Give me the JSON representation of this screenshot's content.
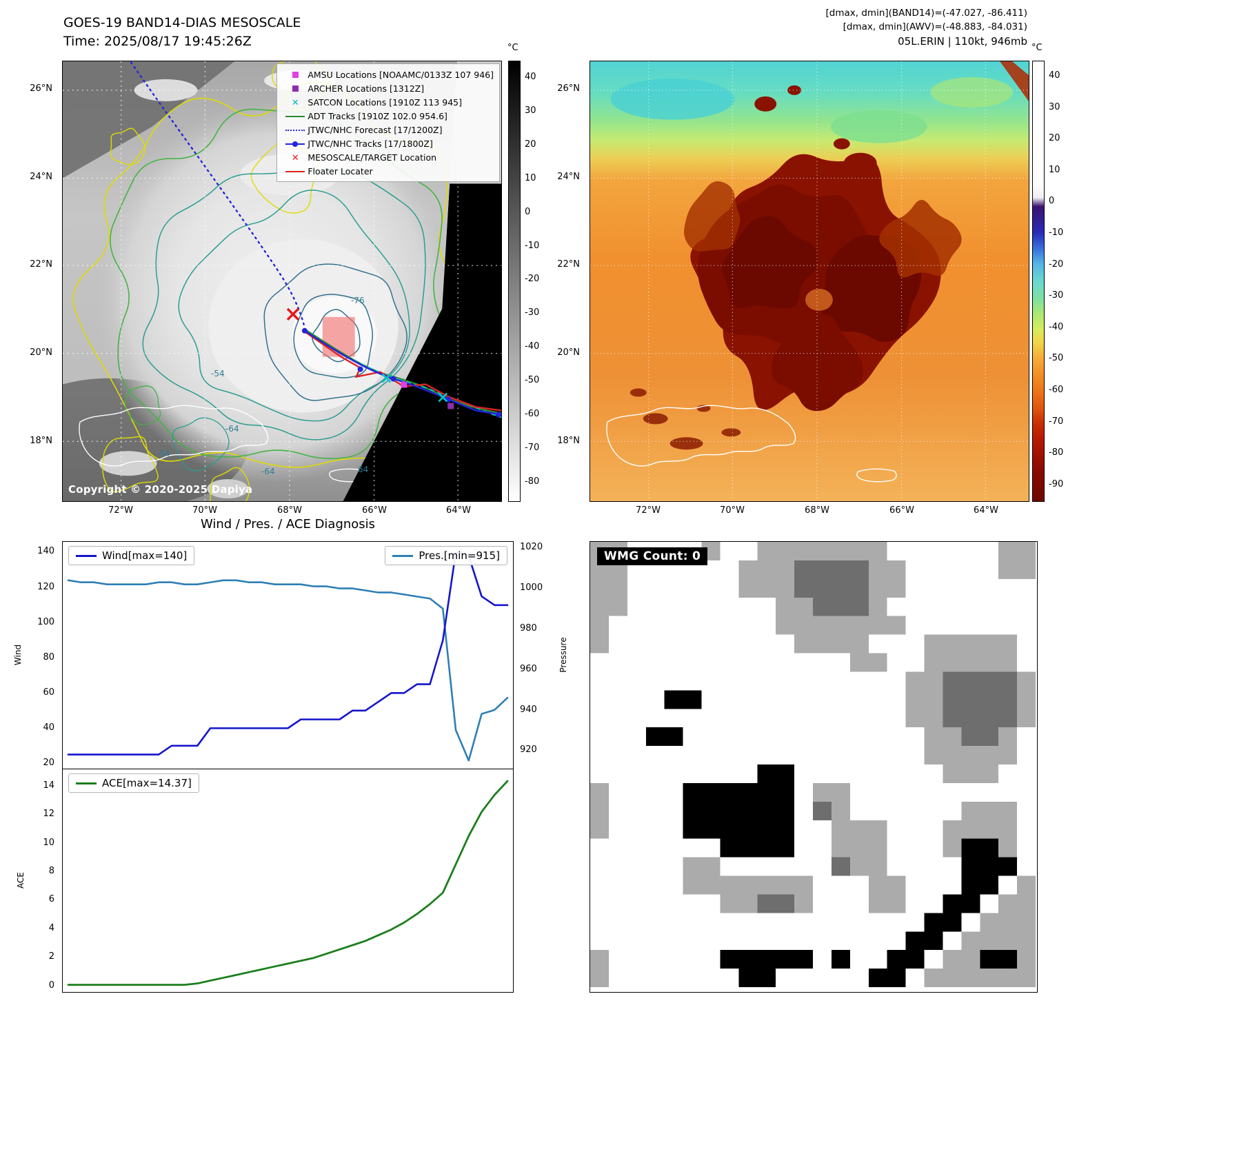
{
  "colors": {
    "wind_line": "#1515cc",
    "pressure_line": "#2d7fb5",
    "ace_line": "#1b7e1b",
    "target_box": "#f26b6b",
    "deep_red_cloud": "#7a0d00",
    "orange_field": "#f0922f",
    "legend_magenta": "#e040e0",
    "legend_purple": "#8b2fb0",
    "legend_cyan": "#00b8b8",
    "legend_green": "#2a8a2a",
    "legend_blue": "#2323dd",
    "legend_red": "#e81515"
  },
  "panel_tl": {
    "title": "GOES-19 BAND14-DIAS MESOSCALE",
    "subtitle": "Time: 2025/08/17 19:45:26Z",
    "copyright": "Copyright © 2020-2025 Dapiya",
    "colorbar_unit": "°C",
    "colorbar_ticks": [
      "40",
      "30",
      "20",
      "10",
      "0",
      "-10",
      "-20",
      "-30",
      "-40",
      "-50",
      "-60",
      "-70",
      "-80"
    ],
    "x_ticks": [
      "72°W",
      "70°W",
      "68°W",
      "66°W",
      "64°W"
    ],
    "y_ticks": [
      "26°N",
      "24°N",
      "22°N",
      "20°N",
      "18°N"
    ],
    "legend": [
      {
        "label": "AMSU Locations [NOAAMC/0133Z 107 946]",
        "marker": "square",
        "color": "#e040e0"
      },
      {
        "label": "ARCHER Locations [1312Z]",
        "marker": "square",
        "color": "#8b2fb0"
      },
      {
        "label": "SATCON Locations [1910Z 113 945]",
        "marker": "x",
        "color": "#00b8b8"
      },
      {
        "label": "ADT Tracks [1910Z 102.0 954.6]",
        "marker": "line",
        "color": "#2a8a2a"
      },
      {
        "label": "JTWC/NHC Forecast [17/1200Z]",
        "marker": "dotted",
        "color": "#2323dd"
      },
      {
        "label": "JTWC/NHC Tracks [17/1800Z]",
        "marker": "line-dot",
        "color": "#2323dd"
      },
      {
        "label": "MESOSCALE/TARGET Location",
        "marker": "x",
        "color": "#e81515"
      },
      {
        "label": "Floater Locater",
        "marker": "line",
        "color": "#dd2222"
      }
    ],
    "contour_labels": [
      "-76",
      "-54",
      "-64",
      "-54",
      "-64",
      "64"
    ]
  },
  "panel_tr": {
    "header_line1": "[dmax, dmin](BAND14)=(-47.027, -86.411)",
    "header_line2": "[dmax, dmin](AWV)=(-48.883, -84.031)",
    "header_line3": "05L.ERIN | 110kt, 946mb",
    "colorbar_unit": "°C",
    "colorbar_ticks": [
      "40",
      "30",
      "20",
      "10",
      "0",
      "-10",
      "-20",
      "-30",
      "-40",
      "-50",
      "-60",
      "-70",
      "-80",
      "-90"
    ],
    "x_ticks": [
      "72°W",
      "70°W",
      "68°W",
      "66°W",
      "64°W"
    ],
    "y_ticks": [
      "26°N",
      "24°N",
      "22°N",
      "20°N",
      "18°N"
    ]
  },
  "panel_bl": {
    "title": "Wind / Pres. / ACE Diagnosis",
    "wind_axis_label": "Wind",
    "pressure_axis_label": "Pressure",
    "ace_axis_label": "ACE",
    "wind_ticks": [
      "20",
      "40",
      "60",
      "80",
      "100",
      "120",
      "140"
    ],
    "pressure_ticks": [
      "920",
      "940",
      "960",
      "980",
      "1000",
      "1020"
    ],
    "ace_ticks": [
      "0",
      "2",
      "4",
      "6",
      "8",
      "10",
      "12",
      "14"
    ]
  },
  "panel_br": {
    "wmg_label": "WMG Count: 0"
  },
  "chart_data": [
    {
      "type": "line",
      "title": "Wind / Pres. / ACE Diagnosis",
      "xlabel": "",
      "ylabel_left": "Wind",
      "ylim_left": [
        20,
        140
      ],
      "ylabel_right": "Pressure",
      "ylim_right": [
        915,
        1020
      ],
      "grid": false,
      "legend_position": "top-left / top-right",
      "series": [
        {
          "name": "Wind[max=140]",
          "axis": "left",
          "color": "#1515cc",
          "values": [
            25,
            25,
            25,
            25,
            25,
            25,
            25,
            25,
            30,
            30,
            30,
            40,
            40,
            40,
            40,
            40,
            40,
            40,
            45,
            45,
            45,
            45,
            50,
            50,
            55,
            60,
            60,
            65,
            65,
            90,
            140,
            138,
            115,
            110,
            110
          ]
        },
        {
          "name": "Pres.[min=915]",
          "axis": "right",
          "color": "#2d7fb5",
          "values": [
            1004,
            1003,
            1003,
            1002,
            1002,
            1002,
            1002,
            1003,
            1003,
            1002,
            1002,
            1003,
            1004,
            1004,
            1003,
            1003,
            1002,
            1002,
            1002,
            1001,
            1001,
            1000,
            1000,
            999,
            998,
            998,
            997,
            996,
            995,
            990,
            930,
            915,
            938,
            940,
            946
          ]
        }
      ],
      "wind_max": 140,
      "pressure_min": 915
    },
    {
      "type": "line",
      "xlabel": "",
      "ylabel": "ACE",
      "ylim": [
        0,
        14.37
      ],
      "grid": false,
      "legend_position": "top-left",
      "series": [
        {
          "name": "ACE[max=14.37]",
          "color": "#1b7e1b",
          "values": [
            0,
            0,
            0,
            0,
            0,
            0,
            0,
            0,
            0,
            0,
            0.1,
            0.3,
            0.5,
            0.7,
            0.9,
            1.1,
            1.3,
            1.5,
            1.7,
            1.9,
            2.2,
            2.5,
            2.8,
            3.1,
            3.5,
            3.9,
            4.4,
            5.0,
            5.7,
            6.5,
            8.5,
            10.5,
            12.2,
            13.4,
            14.37
          ]
        }
      ],
      "ace_max": 14.37
    }
  ]
}
